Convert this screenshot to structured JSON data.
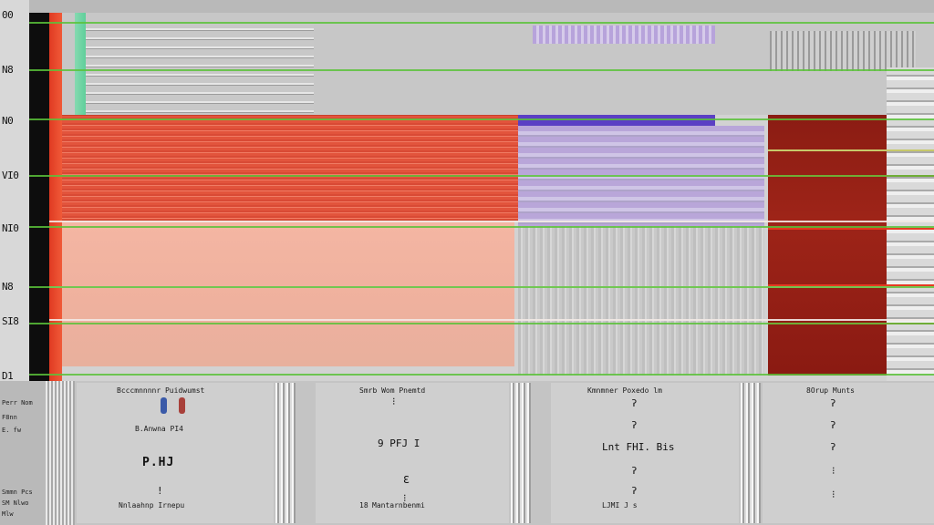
{
  "axis": {
    "ticks": [
      "00",
      "N8",
      "N0",
      "VI0",
      "NI0",
      "N8",
      "SI8",
      "D1"
    ]
  },
  "legend": {
    "lines": [
      "Perr Nom",
      "F8nn",
      "E. fw",
      "Smmn Pcs",
      "SM Nlwo",
      "Mlw"
    ]
  },
  "panels": [
    {
      "title": "Bcccmnnnnr Puidwumst",
      "value": "P LI 4",
      "big": "P.HJ",
      "footer": "Nnlaahnp Irnepu",
      "footer_prefix": ""
    },
    {
      "title": "Smrb Wom Pnemtd",
      "value": "9 PFJ I",
      "big": "",
      "footer": "Mantarnbenmi",
      "footer_prefix": "18"
    },
    {
      "title": "Kmnmner Poxedo lm",
      "value": "Lnt FHI. Bis",
      "big": "LJMI J s",
      "footer": "",
      "footer_prefix": ""
    },
    {
      "title": "8Orup Munts",
      "value": "",
      "big": "",
      "footer": "",
      "footer_prefix": ""
    }
  ],
  "colors": {
    "red": "#e2543c",
    "salmon": "#f4b6a3",
    "purple": "#5b3fc4",
    "lilac": "#b9a6d9",
    "maroon": "#8b1c13",
    "green": "#5ac23a"
  }
}
